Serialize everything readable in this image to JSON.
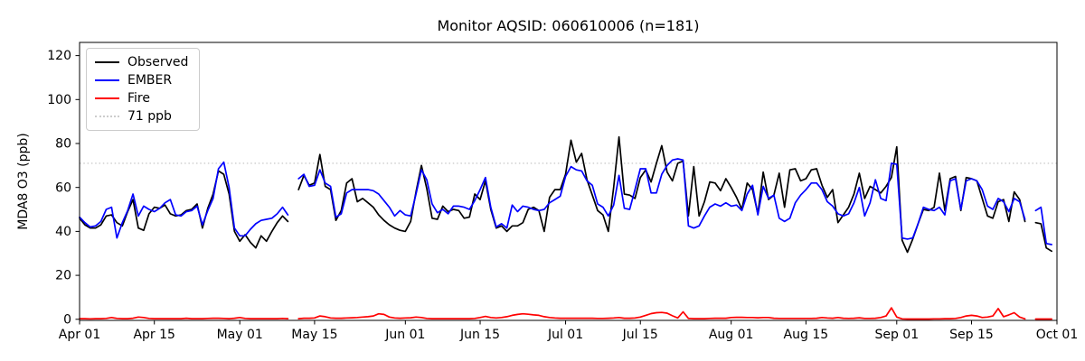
{
  "figure": {
    "title": "Monitor AQSID: 060610006 (n=181)",
    "ylabel": "MDA8 O3 (ppb)",
    "background": "#ffffff",
    "legend": [
      {
        "label": "Observed",
        "color": "#000000",
        "style": "solid"
      },
      {
        "label": "EMBER",
        "color": "#0000ff",
        "style": "solid"
      },
      {
        "label": "Fire",
        "color": "#ff0000",
        "style": "solid"
      },
      {
        "label": "71 ppb",
        "color": "#cccccc",
        "style": "dotted"
      }
    ]
  },
  "chart_data": {
    "type": "line",
    "title": "Monitor AQSID: 060610006 (n=181)",
    "xlabel": "",
    "ylabel": "MDA8 O3 (ppb)",
    "ylim": [
      -0.5,
      126
    ],
    "grid": false,
    "legend_position": "upper-left",
    "n_points": 181,
    "x_start_date": "Apr 01",
    "x_end_date": "Oct 01",
    "x_tick_labels": [
      "Apr 01",
      "Apr 15",
      "May 01",
      "May 15",
      "Jun 01",
      "Jun 15",
      "Jul 01",
      "Jul 15",
      "Aug 01",
      "Aug 15",
      "Sep 01",
      "Sep 15",
      "Oct 01"
    ],
    "x_tick_day_index": [
      0,
      14,
      30,
      44,
      61,
      75,
      91,
      105,
      122,
      136,
      153,
      167,
      183
    ],
    "y_ticks": [
      0,
      20,
      40,
      60,
      80,
      100,
      120
    ],
    "reference_line": {
      "value": 71,
      "label": "71 ppb",
      "color": "#cccccc",
      "style": "dotted"
    },
    "missing_day_indices": [
      40,
      178
    ],
    "series": [
      {
        "name": "Observed",
        "color": "#000000",
        "values": [
          46,
          43,
          41.5,
          41.5,
          43,
          47,
          47.5,
          44,
          42.5,
          49,
          54.5,
          41.5,
          40.5,
          48,
          51,
          50.5,
          52,
          48,
          47,
          47.5,
          49.5,
          50,
          52.5,
          41.5,
          50.5,
          57,
          67.5,
          66,
          57,
          40,
          35.5,
          38.5,
          35,
          32.5,
          38,
          35.5,
          40,
          44,
          47,
          44.5,
          null,
          59,
          65.5,
          61,
          62,
          75,
          60.5,
          59,
          45,
          49.5,
          62,
          64,
          53.5,
          55,
          53,
          51,
          47.5,
          45,
          43,
          41.5,
          40.5,
          40,
          44.5,
          58,
          70,
          59.5,
          46,
          45.5,
          51.5,
          49,
          50,
          49.5,
          46,
          46.5,
          57,
          54.5,
          63,
          50,
          41.5,
          42.5,
          40,
          42.5,
          42.5,
          44,
          50,
          51,
          49.5,
          40,
          55.5,
          59,
          59,
          66,
          81.5,
          71.5,
          75.5,
          63.5,
          56.5,
          49.5,
          47.5,
          40,
          60,
          83,
          57,
          56.5,
          55,
          64.5,
          68,
          62.5,
          71,
          79,
          67,
          63,
          71,
          72,
          47,
          69.5,
          47,
          53.5,
          62.5,
          62,
          58.5,
          64,
          60,
          55.5,
          50,
          62,
          59,
          48,
          67,
          54.5,
          56.5,
          66.5,
          51,
          68,
          68.5,
          63,
          64,
          68,
          68.5,
          61,
          55.5,
          59,
          44,
          47.5,
          51,
          57,
          66.5,
          55,
          60.5,
          59,
          57.5,
          60.5,
          64.5,
          78.5,
          36,
          30.5,
          36.5,
          43.5,
          50,
          49.5,
          51,
          66.5,
          49.5,
          64,
          65,
          49.5,
          64.5,
          64,
          63,
          55,
          47,
          46,
          53.5,
          54.5,
          44.5,
          58,
          54.5,
          44.5,
          null,
          44,
          43.5,
          32.5,
          31
        ]
      },
      {
        "name": "EMBER",
        "color": "#0000ff",
        "values": [
          46.5,
          44,
          42,
          42.5,
          44.5,
          50,
          51,
          37,
          44,
          49.5,
          57,
          47,
          51.5,
          50,
          49,
          50.5,
          53,
          54.5,
          47.5,
          47,
          49,
          49.5,
          51.5,
          43,
          49.5,
          55,
          68.5,
          71.5,
          60,
          41.5,
          38,
          38,
          41,
          43.5,
          45,
          45.5,
          46,
          48,
          51,
          47.5,
          null,
          64,
          66,
          60.5,
          61,
          68,
          62,
          60.5,
          46.5,
          48,
          57.5,
          59,
          59,
          59,
          59,
          58.5,
          57,
          54,
          51,
          47,
          49.5,
          47.5,
          47,
          57,
          68,
          63.5,
          52.5,
          48.5,
          50,
          48,
          51.5,
          51.5,
          51,
          50,
          54,
          59,
          64.5,
          51,
          42,
          43.5,
          41.5,
          52,
          49,
          51.5,
          51,
          50,
          49.5,
          50,
          53,
          54.5,
          56,
          65,
          69.5,
          68,
          67.5,
          63,
          61,
          52.5,
          51,
          47,
          52,
          65.5,
          50.5,
          50,
          59,
          68.5,
          68.5,
          57.5,
          57.5,
          66,
          70,
          72.5,
          73,
          72.5,
          42.5,
          41.5,
          42.5,
          47,
          51,
          52.5,
          51.5,
          53,
          51.5,
          52,
          49.5,
          57,
          61,
          47.5,
          60.5,
          55,
          56.5,
          46,
          44.5,
          46,
          53,
          56.5,
          59,
          62,
          62,
          59,
          53.5,
          51.5,
          48,
          47,
          48,
          53,
          60,
          47,
          53,
          63.5,
          55,
          54,
          71,
          70.5,
          37,
          36.5,
          37,
          43.5,
          51,
          50,
          49.5,
          51,
          47.5,
          63,
          64,
          50,
          63,
          64,
          63,
          59,
          51.5,
          50,
          55,
          53.5,
          49,
          55,
          53.5,
          45.5,
          null,
          49.5,
          51,
          34.5,
          34
        ]
      },
      {
        "name": "Fire",
        "color": "#ff0000",
        "values": [
          0.3,
          0.3,
          0.2,
          0.3,
          0.3,
          0.4,
          0.8,
          0.4,
          0.3,
          0.3,
          0.5,
          1,
          0.8,
          0.4,
          0.3,
          0.3,
          0.3,
          0.3,
          0.3,
          0.3,
          0.5,
          0.3,
          0.3,
          0.3,
          0.4,
          0.5,
          0.5,
          0.4,
          0.3,
          0.5,
          0.8,
          0.4,
          0.3,
          0.3,
          0.3,
          0.3,
          0.3,
          0.3,
          0.4,
          0.3,
          null,
          0.3,
          0.5,
          0.5,
          0.6,
          1.5,
          1.2,
          0.6,
          0.5,
          0.5,
          0.6,
          0.7,
          0.8,
          1,
          1.2,
          1.5,
          2.5,
          2.2,
          1,
          0.6,
          0.5,
          0.6,
          0.7,
          1,
          0.8,
          0.4,
          0.3,
          0.3,
          0.3,
          0.3,
          0.3,
          0.3,
          0.3,
          0.3,
          0.4,
          0.8,
          1.3,
          0.8,
          0.6,
          0.8,
          1.2,
          1.8,
          2.2,
          2.5,
          2.3,
          2,
          1.8,
          1.2,
          0.8,
          0.6,
          0.5,
          0.5,
          0.5,
          0.5,
          0.5,
          0.5,
          0.5,
          0.4,
          0.4,
          0.5,
          0.6,
          0.8,
          0.5,
          0.5,
          0.6,
          1,
          1.8,
          2.6,
          3,
          3.1,
          2.8,
          1.6,
          0.6,
          3.4,
          0.4,
          0.3,
          0.3,
          0.3,
          0.4,
          0.5,
          0.5,
          0.5,
          0.8,
          0.9,
          0.9,
          0.8,
          0.8,
          0.7,
          0.8,
          0.8,
          0.5,
          0.4,
          0.4,
          0.4,
          0.4,
          0.4,
          0.4,
          0.4,
          0.5,
          0.8,
          0.6,
          0.5,
          0.8,
          0.5,
          0.4,
          0.5,
          0.7,
          0.4,
          0.4,
          0.5,
          0.8,
          1.5,
          5.2,
          1,
          0.2,
          0.1,
          0.1,
          0.1,
          0.1,
          0.1,
          0.2,
          0.2,
          0.3,
          0.3,
          0.4,
          0.8,
          1.5,
          1.8,
          1.5,
          0.8,
          1,
          1.5,
          4.9,
          1.2,
          2,
          3,
          1,
          0.2,
          null,
          0.1,
          0.1,
          0.1,
          0.1
        ]
      }
    ]
  }
}
